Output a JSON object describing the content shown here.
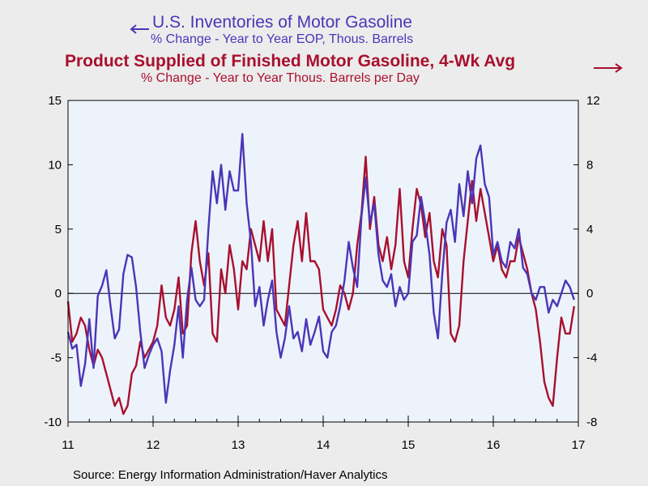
{
  "titles": {
    "series1_title": "U.S. Inventories of Motor Gasoline",
    "series1_subtitle": "% Change - Year to Year     EOP, Thous. Barrels",
    "series2_title": "Product Supplied of Finished Motor Gasoline, 4-Wk Avg",
    "series2_subtitle": "% Change - Year to Year     Thous. Barrels per Day"
  },
  "source": "Source:  Energy Information Administration/Haver Analytics",
  "colors": {
    "inventories": "#4b35b7",
    "product_supplied": "#a8102e",
    "plot_bg": "#edf3fb",
    "page_bg": "#ececec"
  },
  "chart_data": {
    "type": "line",
    "x_ticks": [
      "11",
      "12",
      "13",
      "14",
      "15",
      "16",
      "17"
    ],
    "left_axis": {
      "ylim": [
        -10,
        15
      ],
      "ticks": [
        "15",
        "10",
        "5",
        "0",
        "-5",
        "-10"
      ],
      "series": "U.S. Inventories of Motor Gasoline"
    },
    "right_axis": {
      "ylim": [
        -8,
        12
      ],
      "ticks": [
        "12",
        "8",
        "4",
        "0",
        "-4",
        "-8"
      ],
      "series": "Product Supplied of Finished Motor Gasoline, 4-Wk Avg"
    },
    "zero_line": true,
    "series": [
      {
        "name": "U.S. Inventories of Motor Gasoline",
        "axis": "left",
        "x": [
          2011.0,
          2011.05,
          2011.1,
          2011.15,
          2011.2,
          2011.25,
          2011.3,
          2011.35,
          2011.4,
          2011.45,
          2011.5,
          2011.55,
          2011.6,
          2011.65,
          2011.7,
          2011.75,
          2011.8,
          2011.85,
          2011.9,
          2011.95,
          2012.0,
          2012.05,
          2012.1,
          2012.15,
          2012.2,
          2012.25,
          2012.3,
          2012.35,
          2012.4,
          2012.45,
          2012.5,
          2012.55,
          2012.6,
          2012.65,
          2012.7,
          2012.75,
          2012.8,
          2012.85,
          2012.9,
          2012.95,
          2013.0,
          2013.05,
          2013.1,
          2013.15,
          2013.2,
          2013.25,
          2013.3,
          2013.35,
          2013.4,
          2013.45,
          2013.5,
          2013.55,
          2013.6,
          2013.65,
          2013.7,
          2013.75,
          2013.8,
          2013.85,
          2013.9,
          2013.95,
          2014.0,
          2014.05,
          2014.1,
          2014.15,
          2014.2,
          2014.25,
          2014.3,
          2014.35,
          2014.4,
          2014.45,
          2014.5,
          2014.55,
          2014.6,
          2014.65,
          2014.7,
          2014.75,
          2014.8,
          2014.85,
          2014.9,
          2014.95,
          2015.0,
          2015.05,
          2015.1,
          2015.15,
          2015.2,
          2015.25,
          2015.3,
          2015.35,
          2015.4,
          2015.45,
          2015.5,
          2015.55,
          2015.6,
          2015.65,
          2015.7,
          2015.75,
          2015.8,
          2015.85,
          2015.9,
          2015.95,
          2016.0,
          2016.05,
          2016.1,
          2016.15,
          2016.2,
          2016.25,
          2016.3,
          2016.35,
          2016.4,
          2016.45,
          2016.5,
          2016.55,
          2016.6,
          2016.65,
          2016.7,
          2016.75,
          2016.8,
          2016.85,
          2016.9,
          2016.95
        ],
        "y": [
          -3.0,
          -4.3,
          -4.0,
          -7.2,
          -5.5,
          -2.0,
          -5.8,
          -0.2,
          0.6,
          1.8,
          -1.0,
          -3.5,
          -2.8,
          1.5,
          3.0,
          2.8,
          0.5,
          -3.0,
          -5.8,
          -4.8,
          -4.0,
          -3.5,
          -4.5,
          -8.5,
          -6.0,
          -4.0,
          -1.0,
          -5.0,
          -0.5,
          2.0,
          -0.5,
          -1.0,
          -0.5,
          5.0,
          9.5,
          7.0,
          10.0,
          6.5,
          9.5,
          8.0,
          8.0,
          12.4,
          7.0,
          4.0,
          -1.0,
          0.5,
          -2.5,
          -0.5,
          1.0,
          -3.0,
          -5.0,
          -3.5,
          -1.0,
          -3.5,
          -3.0,
          -4.5,
          -2.0,
          -4.0,
          -3.0,
          -1.8,
          -4.5,
          -5.0,
          -3.0,
          -2.5,
          -1.0,
          1.0,
          4.0,
          2.0,
          0.5,
          6.0,
          9.0,
          5.5,
          7.0,
          3.0,
          1.0,
          0.5,
          1.5,
          -1.0,
          0.5,
          -0.5,
          0.0,
          4.0,
          4.5,
          7.5,
          5.5,
          3.0,
          -1.5,
          -3.5,
          1.5,
          5.5,
          6.5,
          4.0,
          8.5,
          6.0,
          9.5,
          7.0,
          10.5,
          11.5,
          8.5,
          7.5,
          3.0,
          4.0,
          2.5,
          2.0,
          4.0,
          3.5,
          5.0,
          2.0,
          1.5,
          0.0,
          -0.5,
          0.5,
          0.5,
          -1.5,
          -0.5,
          -1.0,
          0.0,
          1.0,
          0.5,
          -0.5
        ]
      },
      {
        "name": "Product Supplied of Finished Motor Gasoline, 4-Wk Avg",
        "axis": "right",
        "x": [
          2011.0,
          2011.05,
          2011.1,
          2011.15,
          2011.2,
          2011.25,
          2011.3,
          2011.35,
          2011.4,
          2011.45,
          2011.5,
          2011.55,
          2011.6,
          2011.65,
          2011.7,
          2011.75,
          2011.8,
          2011.85,
          2011.9,
          2011.95,
          2012.0,
          2012.05,
          2012.1,
          2012.15,
          2012.2,
          2012.25,
          2012.3,
          2012.35,
          2012.4,
          2012.45,
          2012.5,
          2012.55,
          2012.6,
          2012.65,
          2012.7,
          2012.75,
          2012.8,
          2012.85,
          2012.9,
          2012.95,
          2013.0,
          2013.05,
          2013.1,
          2013.15,
          2013.2,
          2013.25,
          2013.3,
          2013.35,
          2013.4,
          2013.45,
          2013.5,
          2013.55,
          2013.6,
          2013.65,
          2013.7,
          2013.75,
          2013.8,
          2013.85,
          2013.9,
          2013.95,
          2014.0,
          2014.05,
          2014.1,
          2014.15,
          2014.2,
          2014.25,
          2014.3,
          2014.35,
          2014.4,
          2014.45,
          2014.5,
          2014.55,
          2014.6,
          2014.65,
          2014.7,
          2014.75,
          2014.8,
          2014.85,
          2014.9,
          2014.95,
          2015.0,
          2015.05,
          2015.1,
          2015.15,
          2015.2,
          2015.25,
          2015.3,
          2015.35,
          2015.4,
          2015.45,
          2015.5,
          2015.55,
          2015.6,
          2015.65,
          2015.7,
          2015.75,
          2015.8,
          2015.85,
          2015.9,
          2015.95,
          2016.0,
          2016.05,
          2016.1,
          2016.15,
          2016.2,
          2016.25,
          2016.3,
          2016.35,
          2016.4,
          2016.45,
          2016.5,
          2016.55,
          2016.6,
          2016.65,
          2016.7,
          2016.75,
          2016.8,
          2016.85,
          2016.9,
          2016.95
        ],
        "y": [
          -0.5,
          -3.0,
          -2.5,
          -1.5,
          -2.0,
          -3.5,
          -4.5,
          -3.5,
          -4.0,
          -5.0,
          -6.0,
          -7.0,
          -6.5,
          -7.5,
          -7.0,
          -5.0,
          -4.5,
          -3.0,
          -4.0,
          -3.5,
          -3.0,
          -2.0,
          0.5,
          -1.5,
          -2.0,
          -1.0,
          1.0,
          -2.5,
          -2.0,
          2.5,
          4.5,
          2.0,
          0.5,
          2.5,
          -2.5,
          -3.0,
          1.5,
          0.0,
          3.0,
          1.5,
          -1.0,
          2.0,
          1.5,
          4.0,
          3.0,
          2.0,
          4.5,
          2.0,
          4.0,
          -1.0,
          -1.5,
          -2.0,
          0.5,
          3.0,
          4.5,
          2.0,
          5.0,
          2.0,
          2.0,
          1.5,
          -1.0,
          -1.5,
          -2.0,
          -1.0,
          0.5,
          0.0,
          -1.0,
          0.0,
          3.0,
          5.0,
          8.5,
          4.0,
          6.0,
          3.0,
          2.0,
          3.5,
          1.5,
          3.0,
          6.5,
          2.0,
          1.0,
          4.0,
          6.5,
          5.5,
          3.5,
          5.0,
          2.0,
          1.0,
          4.0,
          3.0,
          -2.5,
          -3.0,
          -2.0,
          2.0,
          4.5,
          7.0,
          4.5,
          6.5,
          5.0,
          3.5,
          2.0,
          3.0,
          1.5,
          1.0,
          2.0,
          2.0,
          3.5,
          2.5,
          1.5,
          0.0,
          -1.0,
          -3.0,
          -5.5,
          -6.5,
          -7.0,
          -4.0,
          -1.5,
          -2.5,
          -2.5,
          -0.8
        ]
      }
    ]
  }
}
